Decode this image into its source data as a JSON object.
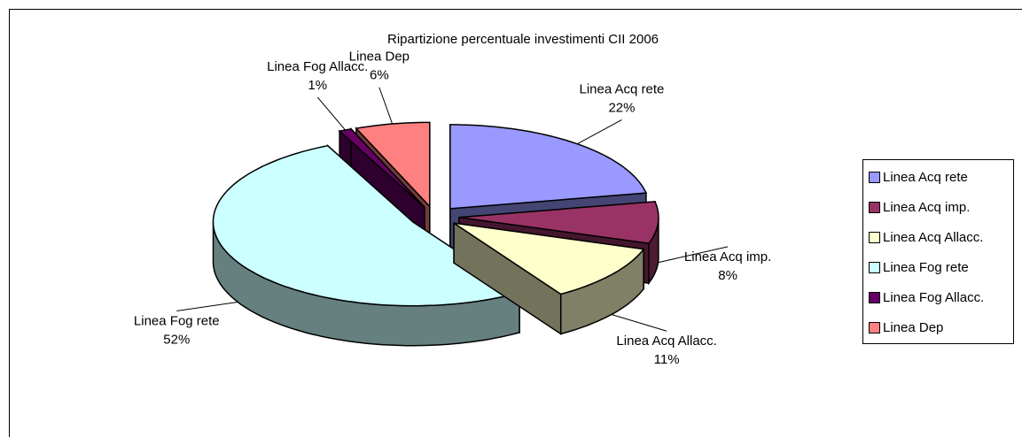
{
  "chart_data": {
    "type": "pie3d",
    "title": "Ripartizione percentuale investimenti  CII 2006",
    "categories": [
      "Linea Acq rete",
      "Linea Acq imp.",
      "Linea Acq Allacc.",
      "Linea Fog rete",
      "Linea Fog Allacc.",
      "Linea Dep"
    ],
    "values": [
      22,
      8,
      11,
      52,
      1,
      6
    ],
    "value_labels": [
      "22%",
      "8%",
      "11%",
      "52%",
      "1%",
      "6%"
    ],
    "colors": [
      "#9999ff",
      "#993366",
      "#ffffcc",
      "#ccffff",
      "#660066",
      "#ff8080"
    ],
    "legend": "right"
  }
}
